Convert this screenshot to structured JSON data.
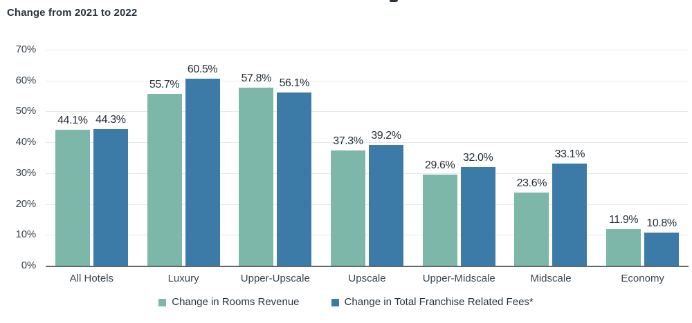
{
  "header": {
    "subtitle": "Change from 2021 to 2022"
  },
  "chart_data": {
    "type": "bar",
    "subtitle": "Change from 2021 to 2022",
    "categories": [
      "All Hotels",
      "Luxury",
      "Upper-Upscale",
      "Upscale",
      "Upper-Midscale",
      "Midscale",
      "Economy"
    ],
    "series": [
      {
        "name": "Change in Rooms Revenue",
        "key": "rooms-revenue",
        "color": "#7CB7A9",
        "values": [
          44.1,
          55.7,
          57.8,
          37.3,
          29.6,
          23.6,
          11.9
        ]
      },
      {
        "name": "Change in Total Franchise Related Fees*",
        "key": "franchise-fees",
        "color": "#3C7BA8",
        "values": [
          44.3,
          60.5,
          56.1,
          39.2,
          32.0,
          33.1,
          10.8
        ]
      }
    ],
    "value_label_suffix": "%",
    "ylim": [
      0,
      70
    ],
    "ytick_step": 10,
    "yticks": [
      "0%",
      "10%",
      "20%",
      "30%",
      "40%",
      "50%",
      "60%",
      "70%"
    ],
    "grid": "horizontal",
    "legend_position": "bottom",
    "colors": {
      "grid": "#E7E9EA",
      "axis_line": "#60686E",
      "value_text": "#242E36",
      "axis_text": "#3A454E"
    }
  }
}
